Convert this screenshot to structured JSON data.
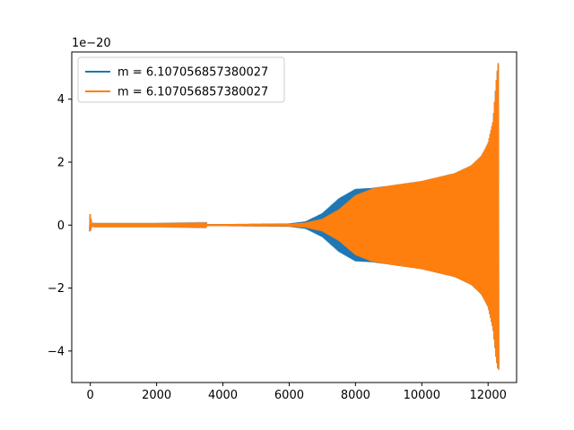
{
  "chart_data": {
    "type": "line",
    "title": "",
    "xlabel": "",
    "ylabel": "",
    "y_offset_label": "1e−20",
    "xlim": [
      -560,
      12860
    ],
    "ylim": [
      -5.0,
      5.5
    ],
    "x_ticks": [
      0,
      2000,
      4000,
      6000,
      8000,
      10000,
      12000
    ],
    "x_tick_labels": [
      "0",
      "2000",
      "4000",
      "6000",
      "8000",
      "10000",
      "12000"
    ],
    "y_ticks": [
      -4,
      -2,
      0,
      2,
      4
    ],
    "y_tick_labels": [
      "−4",
      "−2",
      "0",
      "2",
      "4"
    ],
    "grid": false,
    "legend_position": "upper-left",
    "series": [
      {
        "name": "m = 6.107056857380027",
        "color": "#1f77b4",
        "style": "oscillating-envelope",
        "x": [
          0,
          40,
          80,
          2000,
          4000,
          6000,
          6500,
          7000,
          7500,
          8000,
          8500,
          9000,
          10000,
          11000,
          11500,
          11800,
          12000,
          12150,
          12250,
          12300
        ],
        "upper": [
          0.35,
          0.05,
          0.02,
          0.02,
          0.03,
          0.05,
          0.12,
          0.38,
          0.85,
          1.15,
          1.18,
          1.25,
          1.4,
          1.65,
          1.9,
          2.2,
          2.6,
          3.3,
          4.6,
          5.1
        ],
        "lower": [
          -0.2,
          -0.05,
          -0.02,
          -0.02,
          -0.03,
          -0.05,
          -0.12,
          -0.38,
          -0.85,
          -1.15,
          -1.18,
          -1.25,
          -1.4,
          -1.65,
          -1.9,
          -2.2,
          -2.6,
          -3.3,
          -4.3,
          -4.55
        ]
      },
      {
        "name": "m = 6.107056857380027",
        "color": "#ff7f0e",
        "style": "oscillating-envelope",
        "x": [
          0,
          40,
          80,
          2000,
          4000,
          6000,
          6500,
          7000,
          7500,
          8000,
          8500,
          9000,
          10000,
          11000,
          11500,
          11800,
          12000,
          12150,
          12250,
          12300
        ],
        "upper": [
          0.35,
          0.05,
          0.02,
          0.02,
          0.03,
          0.04,
          0.08,
          0.2,
          0.5,
          0.95,
          1.16,
          1.25,
          1.4,
          1.65,
          1.9,
          2.2,
          2.6,
          3.3,
          4.6,
          5.15
        ],
        "lower": [
          -0.2,
          -0.05,
          -0.02,
          -0.02,
          -0.03,
          -0.04,
          -0.08,
          -0.2,
          -0.5,
          -0.95,
          -1.16,
          -1.25,
          -1.4,
          -1.65,
          -1.9,
          -2.2,
          -2.6,
          -3.3,
          -4.3,
          -4.6
        ]
      }
    ]
  }
}
